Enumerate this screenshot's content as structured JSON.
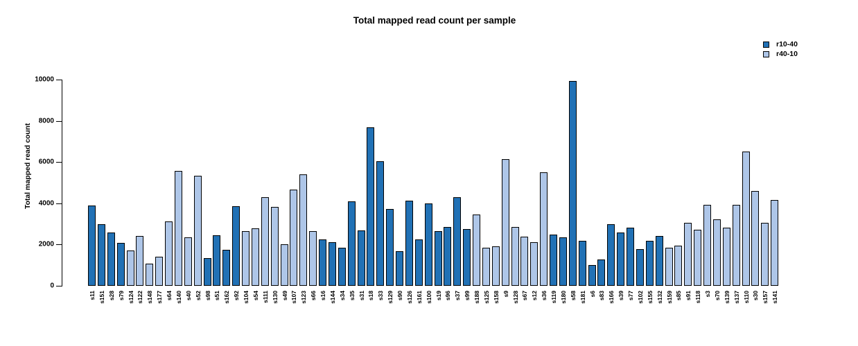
{
  "chart_data": {
    "type": "bar",
    "title": "Total mapped read count per sample",
    "xlabel": "",
    "ylabel": "Total mapped read count",
    "ylim": [
      0,
      10000
    ],
    "yticks": [
      0,
      2000,
      4000,
      6000,
      8000,
      10000
    ],
    "grid": false,
    "legend_position": "top-right",
    "series_legend": [
      {
        "label": "r10-40",
        "color": "#2171b5"
      },
      {
        "label": "r40-10",
        "color": "#aec6e8"
      }
    ],
    "bars": [
      {
        "sample": "s11",
        "value": 3900,
        "group": "r10-40"
      },
      {
        "sample": "s151",
        "value": 2980,
        "group": "r10-40"
      },
      {
        "sample": "s28",
        "value": 2590,
        "group": "r10-40"
      },
      {
        "sample": "s79",
        "value": 2090,
        "group": "r10-40"
      },
      {
        "sample": "s124",
        "value": 1720,
        "group": "r40-10"
      },
      {
        "sample": "s122",
        "value": 2420,
        "group": "r40-10"
      },
      {
        "sample": "s148",
        "value": 1080,
        "group": "r40-10"
      },
      {
        "sample": "s177",
        "value": 1410,
        "group": "r40-10"
      },
      {
        "sample": "s64",
        "value": 3120,
        "group": "r40-10"
      },
      {
        "sample": "s140",
        "value": 5580,
        "group": "r40-10"
      },
      {
        "sample": "s40",
        "value": 2340,
        "group": "r40-10"
      },
      {
        "sample": "s52",
        "value": 5330,
        "group": "r40-10"
      },
      {
        "sample": "s98",
        "value": 1340,
        "group": "r10-40"
      },
      {
        "sample": "s51",
        "value": 2450,
        "group": "r10-40"
      },
      {
        "sample": "s162",
        "value": 1760,
        "group": "r10-40"
      },
      {
        "sample": "s92",
        "value": 3860,
        "group": "r10-40"
      },
      {
        "sample": "s104",
        "value": 2640,
        "group": "r40-10"
      },
      {
        "sample": "s54",
        "value": 2800,
        "group": "r40-10"
      },
      {
        "sample": "s111",
        "value": 4300,
        "group": "r40-10"
      },
      {
        "sample": "s130",
        "value": 3820,
        "group": "r40-10"
      },
      {
        "sample": "s49",
        "value": 2010,
        "group": "r40-10"
      },
      {
        "sample": "s107",
        "value": 4680,
        "group": "r40-10"
      },
      {
        "sample": "s123",
        "value": 5390,
        "group": "r40-10"
      },
      {
        "sample": "s66",
        "value": 2640,
        "group": "r40-10"
      },
      {
        "sample": "s16",
        "value": 2260,
        "group": "r10-40"
      },
      {
        "sample": "s144",
        "value": 2110,
        "group": "r10-40"
      },
      {
        "sample": "s34",
        "value": 1840,
        "group": "r10-40"
      },
      {
        "sample": "s35",
        "value": 4090,
        "group": "r10-40"
      },
      {
        "sample": "s31",
        "value": 2670,
        "group": "r10-40"
      },
      {
        "sample": "s18",
        "value": 7670,
        "group": "r10-40"
      },
      {
        "sample": "s33",
        "value": 6050,
        "group": "r10-40"
      },
      {
        "sample": "s129",
        "value": 3720,
        "group": "r10-40"
      },
      {
        "sample": "s90",
        "value": 1690,
        "group": "r10-40"
      },
      {
        "sample": "s126",
        "value": 4130,
        "group": "r10-40"
      },
      {
        "sample": "s161",
        "value": 2250,
        "group": "r10-40"
      },
      {
        "sample": "s100",
        "value": 3990,
        "group": "r10-40"
      },
      {
        "sample": "s19",
        "value": 2650,
        "group": "r10-40"
      },
      {
        "sample": "s96",
        "value": 2860,
        "group": "r10-40"
      },
      {
        "sample": "s37",
        "value": 4300,
        "group": "r10-40"
      },
      {
        "sample": "s99",
        "value": 2750,
        "group": "r10-40"
      },
      {
        "sample": "s188",
        "value": 3470,
        "group": "r40-10"
      },
      {
        "sample": "s125",
        "value": 1860,
        "group": "r40-10"
      },
      {
        "sample": "s158",
        "value": 1920,
        "group": "r40-10"
      },
      {
        "sample": "s9",
        "value": 6150,
        "group": "r40-10"
      },
      {
        "sample": "s128",
        "value": 2860,
        "group": "r40-10"
      },
      {
        "sample": "s67",
        "value": 2370,
        "group": "r40-10"
      },
      {
        "sample": "s12",
        "value": 2110,
        "group": "r40-10"
      },
      {
        "sample": "s36",
        "value": 5490,
        "group": "r40-10"
      },
      {
        "sample": "s119",
        "value": 2480,
        "group": "r10-40"
      },
      {
        "sample": "s180",
        "value": 2340,
        "group": "r10-40"
      },
      {
        "sample": "s58",
        "value": 9940,
        "group": "r10-40"
      },
      {
        "sample": "s181",
        "value": 2170,
        "group": "r10-40"
      },
      {
        "sample": "s6",
        "value": 1000,
        "group": "r10-40"
      },
      {
        "sample": "s83",
        "value": 1280,
        "group": "r10-40"
      },
      {
        "sample": "s166",
        "value": 2980,
        "group": "r10-40"
      },
      {
        "sample": "s39",
        "value": 2590,
        "group": "r10-40"
      },
      {
        "sample": "s77",
        "value": 2810,
        "group": "r10-40"
      },
      {
        "sample": "s102",
        "value": 1780,
        "group": "r10-40"
      },
      {
        "sample": "s155",
        "value": 2190,
        "group": "r10-40"
      },
      {
        "sample": "s132",
        "value": 2410,
        "group": "r10-40"
      },
      {
        "sample": "s159",
        "value": 1840,
        "group": "r40-10"
      },
      {
        "sample": "s85",
        "value": 1950,
        "group": "r40-10"
      },
      {
        "sample": "s91",
        "value": 3040,
        "group": "r40-10"
      },
      {
        "sample": "s118",
        "value": 2710,
        "group": "r40-10"
      },
      {
        "sample": "s3",
        "value": 3940,
        "group": "r40-10"
      },
      {
        "sample": "s70",
        "value": 3230,
        "group": "r40-10"
      },
      {
        "sample": "s139",
        "value": 2830,
        "group": "r40-10"
      },
      {
        "sample": "s137",
        "value": 3920,
        "group": "r40-10"
      },
      {
        "sample": "s110",
        "value": 6500,
        "group": "r40-10"
      },
      {
        "sample": "s30",
        "value": 4600,
        "group": "r40-10"
      },
      {
        "sample": "s157",
        "value": 3040,
        "group": "r40-10"
      },
      {
        "sample": "s141",
        "value": 4150,
        "group": "r40-10"
      }
    ]
  }
}
